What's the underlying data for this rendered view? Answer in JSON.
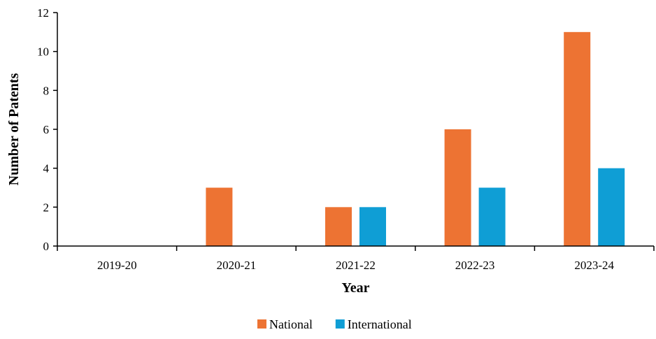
{
  "chart_data": {
    "type": "bar",
    "title": "",
    "xlabel": "Year",
    "ylabel": "Number of Patents",
    "categories": [
      "2019-20",
      "2020-21",
      "2021-22",
      "2022-23",
      "2023-24"
    ],
    "series": [
      {
        "name": "National",
        "color": "#ED7333",
        "values": [
          0,
          3,
          2,
          6,
          11
        ]
      },
      {
        "name": "International",
        "color": "#0F9ED5",
        "values": [
          0,
          0,
          2,
          3,
          4
        ]
      }
    ],
    "ylim": [
      0,
      12
    ],
    "yticks": [
      0,
      2,
      4,
      6,
      8,
      10,
      12
    ],
    "grid": false,
    "legend_position": "bottom"
  }
}
